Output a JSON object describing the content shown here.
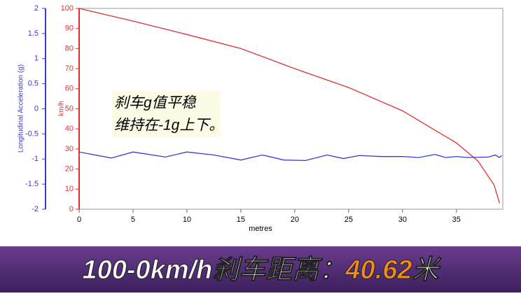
{
  "chart_data": {
    "type": "line",
    "x_label": "metres",
    "y_label": "km/h",
    "y2_label": "Longitudinal Acceleration (g)",
    "xlim": [
      0,
      39.3
    ],
    "xticks": [
      0,
      5,
      10,
      15,
      20,
      25,
      30,
      35
    ],
    "ylim": [
      0,
      100
    ],
    "yticks": [
      0,
      10,
      20,
      30,
      40,
      50,
      60,
      70,
      80,
      90,
      100
    ],
    "y2lim": [
      -2,
      2
    ],
    "y2ticks": [
      -2,
      -1.5,
      -1,
      -0.5,
      0,
      0.5,
      1,
      1.5,
      2
    ],
    "annotation": [
      "刹车g值平稳",
      "维持在-1g上下。"
    ],
    "series": [
      {
        "name": "km/h",
        "color": "#e03030",
        "x": [
          0,
          5,
          10,
          15,
          20,
          25,
          30,
          35,
          37,
          38.5,
          39
        ],
        "values": [
          100,
          93.7,
          87,
          80,
          70,
          60.6,
          49,
          33,
          24,
          12,
          3
        ]
      },
      {
        "name": "g",
        "color": "#3a3ad0",
        "axis": "y2",
        "x": [
          0,
          3,
          5,
          8,
          10,
          12.5,
          15,
          17,
          19,
          21,
          23,
          24.5,
          26,
          28,
          30,
          31.5,
          33,
          34,
          35,
          36,
          38,
          38.6,
          39,
          39.2
        ],
        "values": [
          -0.86,
          -0.98,
          -0.86,
          -0.96,
          -0.86,
          -0.92,
          -1.02,
          -0.92,
          -1.02,
          -1.03,
          -0.92,
          -0.99,
          -0.93,
          -0.95,
          -0.95,
          -0.97,
          -0.91,
          -0.97,
          -0.95,
          -0.97,
          -0.96,
          -0.92,
          -0.97,
          -0.93
        ]
      }
    ]
  },
  "banner": {
    "prefix": "100-0km/h刹车距离：",
    "value": "40.62",
    "suffix": "米"
  }
}
